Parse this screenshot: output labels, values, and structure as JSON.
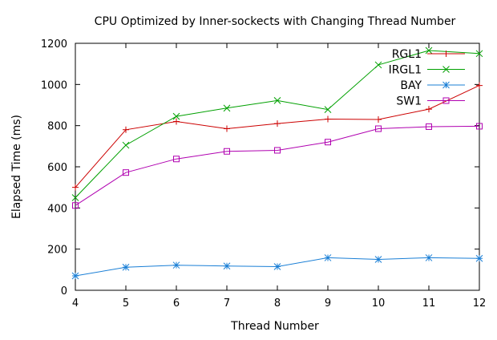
{
  "chart_data": {
    "type": "line",
    "title": "CPU Optimized by Inner-sockects with Changing Thread Number",
    "xlabel": "Thread Number",
    "ylabel": "Elapsed Time (ms)",
    "x": [
      4,
      5,
      6,
      7,
      8,
      9,
      10,
      11,
      12
    ],
    "xlim": [
      4,
      12
    ],
    "ylim": [
      0,
      1200
    ],
    "xticks": [
      "4",
      "5",
      "6",
      "7",
      "8",
      "9",
      "10",
      "11",
      "12"
    ],
    "yticks": [
      "0",
      "200",
      "400",
      "600",
      "800",
      "1000",
      "1200"
    ],
    "grid": false,
    "legend_position": "top-right",
    "series": [
      {
        "name": "RGL1",
        "color": "#cc0000",
        "marker": "plus",
        "values": [
          500,
          780,
          820,
          785,
          810,
          832,
          830,
          880,
          995
        ]
      },
      {
        "name": "IRGL1",
        "color": "#00a000",
        "marker": "x",
        "values": [
          450,
          705,
          845,
          885,
          922,
          878,
          1095,
          1165,
          1150
        ]
      },
      {
        "name": "BAY",
        "color": "#1a7fd6",
        "marker": "star",
        "values": [
          70,
          112,
          122,
          118,
          115,
          158,
          150,
          158,
          155
        ]
      },
      {
        "name": "SW1",
        "color": "#b000b0",
        "marker": "square",
        "values": [
          412,
          572,
          638,
          675,
          680,
          720,
          785,
          795,
          797
        ]
      }
    ]
  }
}
